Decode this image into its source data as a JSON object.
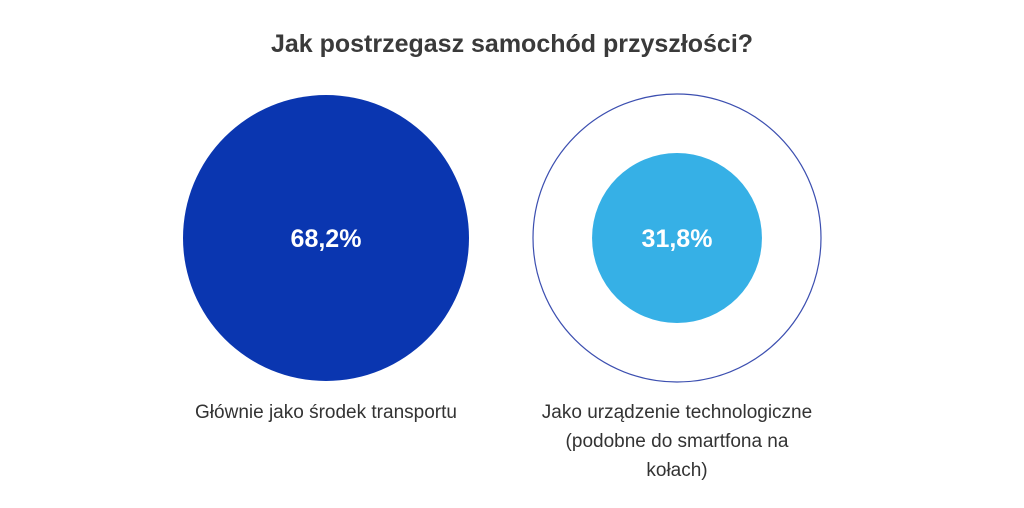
{
  "chart_data": {
    "type": "bubble",
    "title": "Jak postrzegasz samochód przyszłości?",
    "unit": "%",
    "categories": [
      "Głównie jako środek transportu",
      "Jako urządzenie technologiczne (podobne do smartfona na kołach)"
    ],
    "values": [
      68.2,
      31.8
    ],
    "value_labels": [
      "68,2%",
      "31,8%"
    ],
    "colors": [
      "#0a36b0",
      "#36b0e6"
    ],
    "outline_color": "#3c4fb0"
  }
}
